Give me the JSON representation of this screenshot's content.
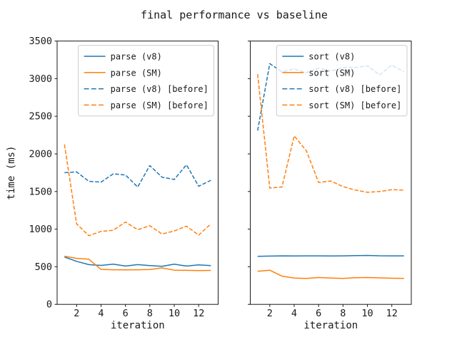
{
  "figure": {
    "title": "final performance vs baseline",
    "background": "#ffffff",
    "text_color": "#1a1a1a",
    "spine_color": "#1a1a1a",
    "legend_border_color": "#cccccc"
  },
  "chart_data": [
    {
      "type": "line",
      "title": "",
      "xlabel": "iteration",
      "ylabel": "time (ms)",
      "xlim": [
        0.4,
        13.6
      ],
      "ylim": [
        0,
        3500
      ],
      "xticks": [
        2,
        4,
        6,
        8,
        10,
        12
      ],
      "yticks": [
        0,
        500,
        1000,
        1500,
        2000,
        2500,
        3000,
        3500
      ],
      "show_ytick_labels": true,
      "grid": false,
      "legend_position": "upper right",
      "x": [
        1,
        2,
        3,
        4,
        5,
        6,
        7,
        8,
        9,
        10,
        11,
        12,
        13
      ],
      "series": [
        {
          "name": "parse (v8)",
          "color": "#1f77b4",
          "style": "solid",
          "values": [
            630,
            572,
            528,
            518,
            534,
            509,
            528,
            515,
            506,
            534,
            509,
            525,
            515
          ]
        },
        {
          "name": "parse (SM)",
          "color": "#ff7f0e",
          "style": "solid",
          "values": [
            640,
            612,
            600,
            465,
            460,
            458,
            460,
            463,
            485,
            455,
            453,
            449,
            452
          ]
        },
        {
          "name": "parse (v8) [before]",
          "color": "#1f77b4",
          "style": "dashed",
          "values": [
            1750,
            1760,
            1635,
            1625,
            1735,
            1720,
            1560,
            1845,
            1690,
            1660,
            1855,
            1570,
            1650
          ]
        },
        {
          "name": "parse (SM) [before]",
          "color": "#ff7f0e",
          "style": "dashed",
          "values": [
            2125,
            1070,
            913,
            970,
            985,
            1095,
            993,
            1045,
            936,
            975,
            1040,
            920,
            1070
          ]
        }
      ]
    },
    {
      "type": "line",
      "title": "",
      "xlabel": "iteration",
      "ylabel": "",
      "xlim": [
        0.4,
        13.6
      ],
      "ylim": [
        0,
        3500
      ],
      "xticks": [
        2,
        4,
        6,
        8,
        10,
        12
      ],
      "yticks": [
        0,
        500,
        1000,
        1500,
        2000,
        2500,
        3000,
        3500
      ],
      "show_ytick_labels": false,
      "grid": false,
      "legend_position": "upper right",
      "x": [
        1,
        2,
        3,
        4,
        5,
        6,
        7,
        8,
        9,
        10,
        11,
        12,
        13
      ],
      "series": [
        {
          "name": "sort (v8)",
          "color": "#1f77b4",
          "style": "solid",
          "values": [
            638,
            642,
            645,
            644,
            645,
            645,
            644,
            645,
            649,
            651,
            646,
            645,
            645
          ]
        },
        {
          "name": "sort (SM)",
          "color": "#ff7f0e",
          "style": "solid",
          "values": [
            440,
            455,
            375,
            350,
            345,
            357,
            350,
            345,
            355,
            357,
            352,
            348,
            345
          ]
        },
        {
          "name": "sort (v8) [before]",
          "color": "#1f77b4",
          "style": "dashed",
          "values": [
            2310,
            3200,
            3090,
            3130,
            3080,
            3140,
            3100,
            3150,
            3150,
            3170,
            3050,
            3180,
            3090
          ]
        },
        {
          "name": "sort (SM) [before]",
          "color": "#ff7f0e",
          "style": "dashed",
          "values": [
            3060,
            1545,
            1560,
            2240,
            2040,
            1620,
            1640,
            1565,
            1520,
            1490,
            1500,
            1525,
            1518
          ]
        }
      ]
    }
  ]
}
